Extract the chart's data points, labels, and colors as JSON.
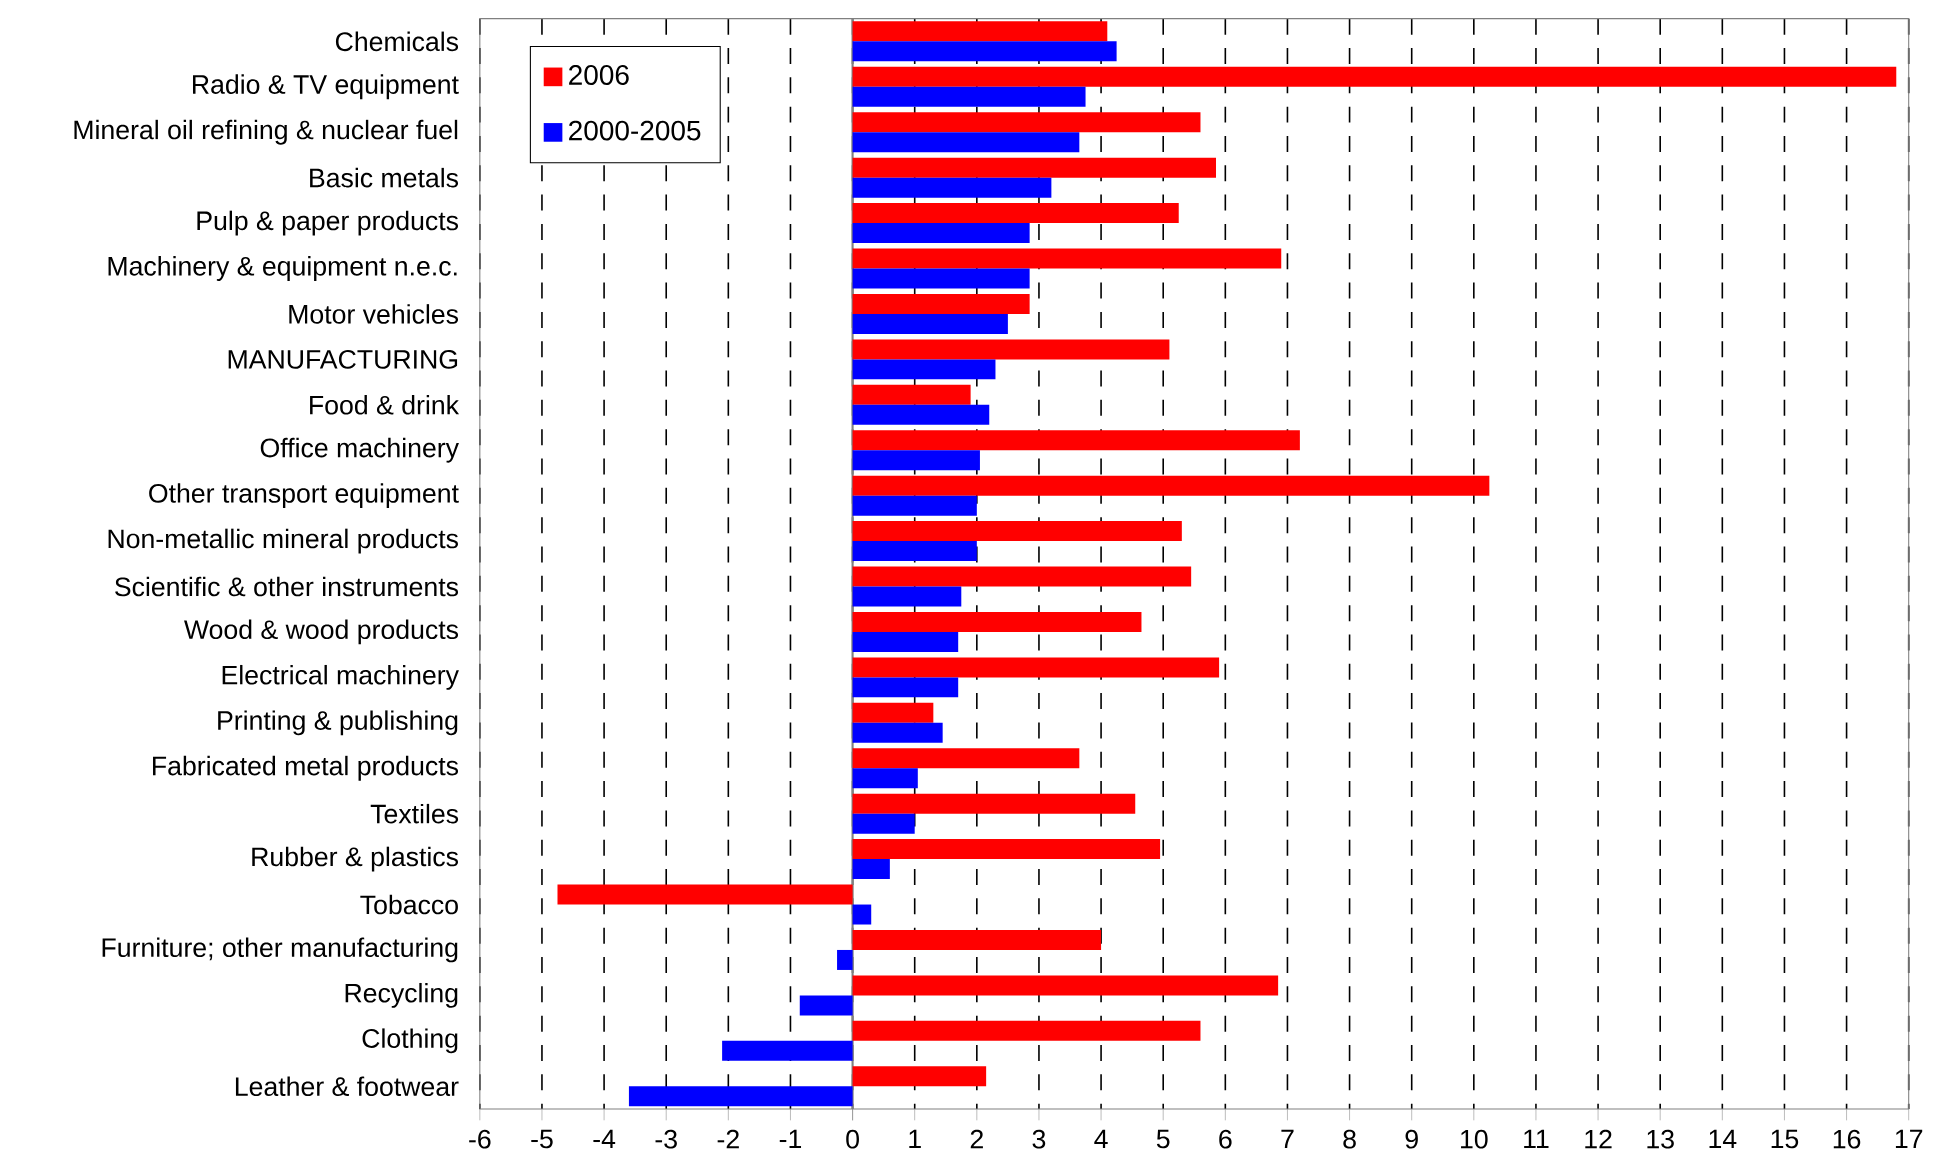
{
  "chart_data": {
    "type": "bar",
    "orientation": "horizontal",
    "categories": [
      "Chemicals",
      "Radio & TV equipment",
      "Mineral oil refining & nuclear fuel",
      "Basic metals",
      "Pulp & paper products",
      "Machinery & equipment n.e.c.",
      "Motor vehicles",
      "MANUFACTURING",
      "Food & drink",
      "Office machinery",
      "Other transport equipment",
      "Non-metallic mineral products",
      "Scientific & other instruments",
      "Wood & wood products",
      "Electrical machinery",
      "Printing & publishing",
      "Fabricated metal products",
      "Textiles",
      "Rubber & plastics",
      "Tobacco",
      "Furniture; other manufacturing",
      "Recycling",
      "Clothing",
      "Leather & footwear"
    ],
    "series": [
      {
        "name": "2006",
        "color": "#ff0000",
        "values": [
          4.1,
          16.8,
          5.6,
          5.85,
          5.25,
          6.9,
          2.85,
          5.1,
          1.9,
          7.2,
          10.25,
          5.3,
          5.45,
          4.65,
          5.9,
          1.3,
          3.65,
          4.55,
          4.95,
          -4.75,
          4.0,
          6.85,
          5.6,
          2.15
        ]
      },
      {
        "name": "2000-2005",
        "color": "#0000ff",
        "values": [
          4.25,
          3.75,
          3.65,
          3.2,
          2.85,
          2.85,
          2.5,
          2.3,
          2.2,
          2.05,
          2.0,
          2.0,
          1.75,
          1.7,
          1.7,
          1.45,
          1.05,
          1.0,
          0.6,
          0.3,
          -0.25,
          -0.85,
          -2.1,
          -3.6
        ]
      }
    ],
    "xlim": [
      -6,
      17
    ],
    "xticks": [
      -6,
      -5,
      -4,
      -3,
      -2,
      -1,
      0,
      1,
      2,
      3,
      4,
      5,
      6,
      7,
      8,
      9,
      10,
      11,
      12,
      13,
      14,
      15,
      16,
      17
    ],
    "grid": "x",
    "legend": "top left"
  }
}
